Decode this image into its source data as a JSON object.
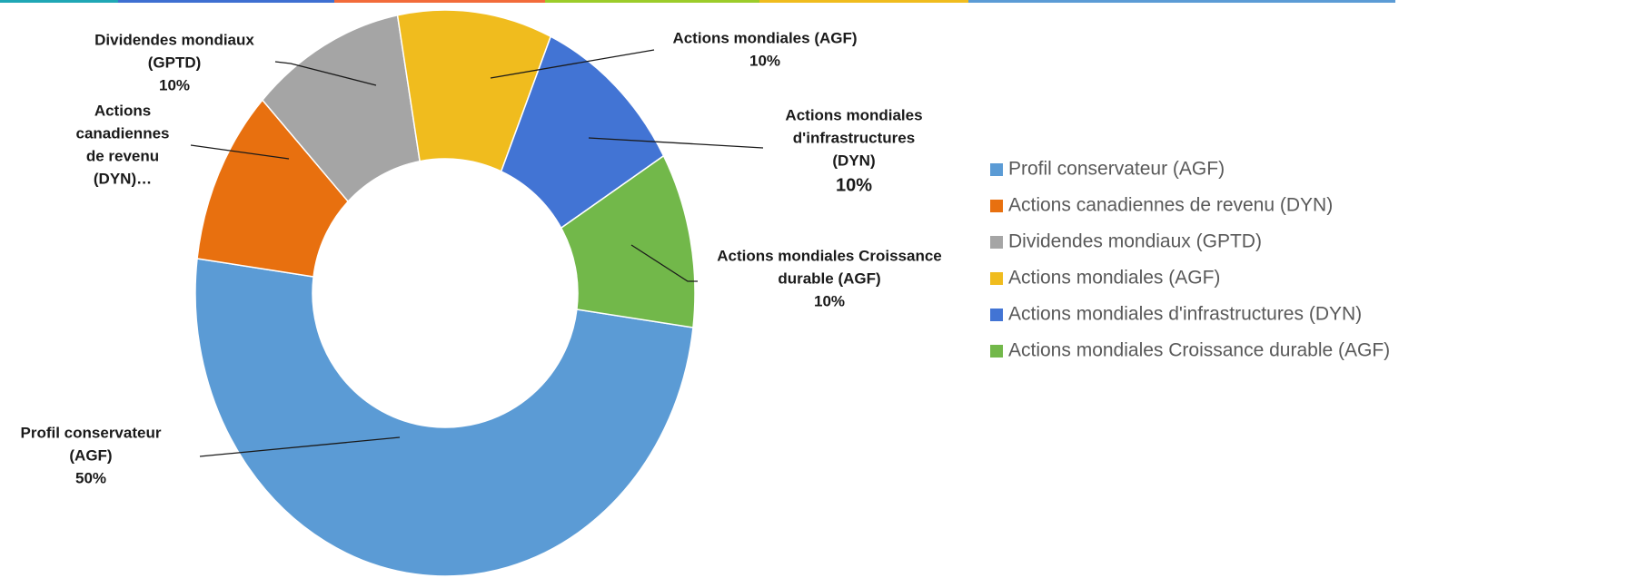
{
  "chart_data": {
    "type": "donut",
    "categories": [
      "Profil conservateur (AGF)",
      "Actions canadiennes de revenu (DYN)",
      "Dividendes mondiaux (GPTD)",
      "Actions mondiales (AGF)",
      "Actions mondiales d'infrastructures (DYN)",
      "Actions mondiales Croissance durable (AGF)"
    ],
    "values": [
      50,
      10,
      10,
      10,
      10,
      10
    ],
    "value_labels": [
      "50%",
      null,
      "10%",
      "10%",
      "10%",
      "10%"
    ],
    "label_lines": [
      [
        "Profil conservateur",
        "(AGF)"
      ],
      [
        "Actions",
        "canadiennes",
        "de revenu",
        "(DYN)…"
      ],
      [
        "Dividendes mondiaux",
        "(GPTD)"
      ],
      [
        "Actions mondiales (AGF)"
      ],
      [
        "Actions mondiales",
        "d'infrastructures",
        "(DYN)"
      ],
      [
        "Actions mondiales Croissance",
        "durable (AGF)"
      ]
    ],
    "colors": [
      "#5b9bd5",
      "#e8700f",
      "#a5a5a5",
      "#f0bc1e",
      "#4274d4",
      "#72b84a"
    ],
    "legend": "right"
  }
}
